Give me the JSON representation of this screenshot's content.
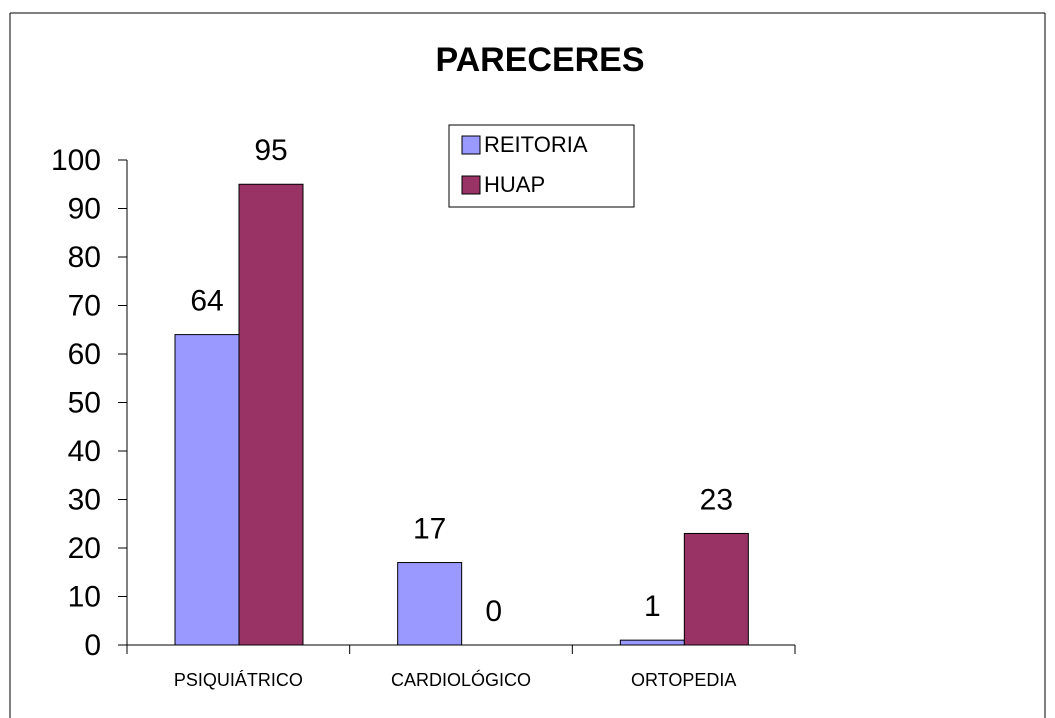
{
  "chart_data": {
    "type": "bar",
    "title": "PARECERES",
    "categories": [
      "PSIQUIÁTRICO",
      "CARDIOLÓGICO",
      "ORTOPEDIA"
    ],
    "series": [
      {
        "name": "REITORIA",
        "color": "#9999ff",
        "values": [
          64,
          17,
          1
        ]
      },
      {
        "name": "HUAP",
        "color": "#993366",
        "values": [
          95,
          0,
          23
        ]
      }
    ],
    "ylim": [
      0,
      100
    ],
    "yticks": [
      0,
      10,
      20,
      30,
      40,
      50,
      60,
      70,
      80,
      90,
      100
    ],
    "legend": "top"
  }
}
